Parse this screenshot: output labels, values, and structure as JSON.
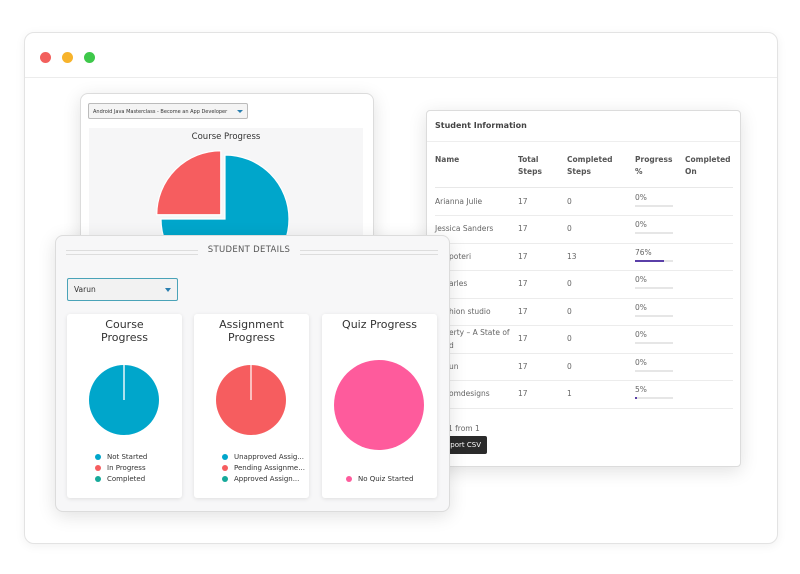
{
  "course_panel": {
    "dropdown": "Android Java Masterclass - Become an App Developer",
    "title": "Course Progress",
    "pie": {
      "values": [
        75,
        25
      ],
      "colors": [
        "#00a6cb",
        "#f65d5f"
      ]
    }
  },
  "student_information": {
    "title": "Student Information",
    "headers": [
      "Name",
      "Total Steps",
      "Completed Steps",
      "Progress %",
      "Completed On"
    ],
    "rows": [
      {
        "name": "Arianna Julie",
        "total": "17",
        "completed": "0",
        "progress": {
          "value": 0,
          "label": "0%"
        }
      },
      {
        "name": "Jessica Sanders",
        "total": "17",
        "completed": "0",
        "progress": {
          "value": 0,
          "label": "0%"
        }
      },
      {
        "name": "poteri",
        "total": "17",
        "completed": "13",
        "progress": {
          "value": 76,
          "label": "76%"
        }
      },
      {
        "name": "arles",
        "total": "17",
        "completed": "0",
        "progress": {
          "value": 0,
          "label": "0%"
        }
      },
      {
        "name": "hion studio",
        "total": "17",
        "completed": "0",
        "progress": {
          "value": 0,
          "label": "0%"
        }
      },
      {
        "name": [
          "erty – A State of",
          "d"
        ],
        "total": "17",
        "completed": "0",
        "progress": {
          "value": 0,
          "label": "0%"
        }
      },
      {
        "name": "un",
        "total": "17",
        "completed": "0",
        "progress": {
          "value": 0,
          "label": "0%"
        }
      },
      {
        "name": "omdesigns",
        "total": "17",
        "completed": "1",
        "progress": {
          "value": 5,
          "label": "5%"
        }
      }
    ],
    "pagination": "e 1 from 1",
    "export_button": "port CSV"
  },
  "student_details": {
    "title": "STUDENT DETAILS",
    "dropdown": "Varun",
    "cards": [
      {
        "title": "Course Progress",
        "slices": [
          {
            "name": "Not Started",
            "color": "#00a6cb",
            "value": 100
          },
          {
            "name": "In Progress",
            "color": "#f65d5f",
            "value": 0
          },
          {
            "name": "Completed",
            "color": "#16a99a",
            "value": 0
          }
        ]
      },
      {
        "title": "Assignment Progress",
        "slices": [
          {
            "name": "Unapproved Assig...",
            "color": "#00a6cb",
            "value": 0
          },
          {
            "name": "Pending Assignme...",
            "color": "#f65d5f",
            "value": 100
          },
          {
            "name": "Approved Assign...",
            "color": "#16a99a",
            "value": 0
          }
        ]
      },
      {
        "title": "Quiz Progress",
        "slices": [
          {
            "name": "No Quiz Started",
            "color": "#fe5b9c",
            "value": 100
          }
        ]
      }
    ]
  }
}
